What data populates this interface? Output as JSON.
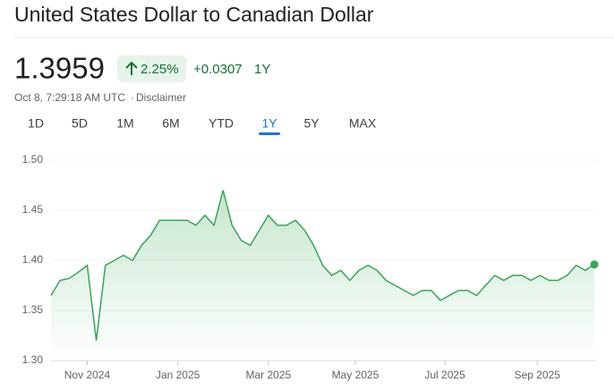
{
  "header": {
    "title": "United States Dollar to Canadian Dollar",
    "price": "1.3959",
    "change_percent": "2.25%",
    "change": "+0.0307",
    "period": "1Y",
    "timestamp": "Oct 8, 7:29:18 AM UTC",
    "disclaimer": "Disclaimer"
  },
  "ranges": {
    "tabs": [
      "1D",
      "5D",
      "1M",
      "6M",
      "YTD",
      "1Y",
      "5Y",
      "MAX"
    ],
    "selected": "1Y"
  },
  "chart_data": {
    "type": "line",
    "color": "#34a853",
    "values": [
      1.365,
      1.38,
      1.382,
      1.388,
      1.395,
      1.32,
      1.395,
      1.4,
      1.405,
      1.4,
      1.415,
      1.425,
      1.44,
      1.44,
      1.44,
      1.44,
      1.435,
      1.445,
      1.435,
      1.47,
      1.435,
      1.42,
      1.415,
      1.43,
      1.445,
      1.435,
      1.435,
      1.44,
      1.43,
      1.415,
      1.395,
      1.385,
      1.39,
      1.38,
      1.39,
      1.395,
      1.39,
      1.38,
      1.375,
      1.37,
      1.365,
      1.37,
      1.37,
      1.36,
      1.365,
      1.37,
      1.37,
      1.365,
      1.375,
      1.385,
      1.38,
      1.385,
      1.385,
      1.38,
      1.385,
      1.38,
      1.38,
      1.385,
      1.395,
      1.39,
      1.3959
    ],
    "xlim": [
      0,
      60
    ],
    "xticks": [
      {
        "value": 4,
        "label": "Nov 2024"
      },
      {
        "value": 14,
        "label": "Jan 2025"
      },
      {
        "value": 24,
        "label": "Mar 2025"
      },
      {
        "value": 33.6,
        "label": "May 2025"
      },
      {
        "value": 43.5,
        "label": "Jul 2025"
      },
      {
        "value": 53.7,
        "label": "Sep 2025"
      }
    ],
    "ylim": [
      1.3,
      1.5
    ],
    "yticks": [
      {
        "value": 1.3,
        "label": "1.30"
      },
      1.35,
      {
        "value": 1.4,
        "label": "1.40"
      },
      1.45,
      {
        "value": 1.5,
        "label": "1.50"
      }
    ],
    "grid": true
  }
}
